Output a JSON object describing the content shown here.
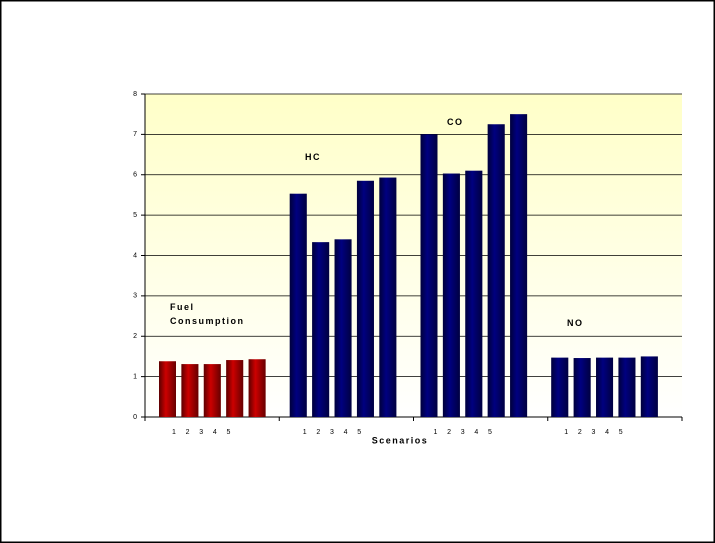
{
  "chart_data": {
    "type": "bar",
    "x_label": "Scenarios",
    "categories": [
      "1",
      "2",
      "3",
      "4",
      "5"
    ],
    "series": [
      {
        "name": "Fuel Consumption",
        "color": "#cc0000",
        "values": [
          1.38,
          1.31,
          1.31,
          1.41,
          1.43
        ]
      },
      {
        "name": "HC",
        "color": "#000080",
        "values": [
          5.53,
          4.33,
          4.4,
          5.85,
          5.93
        ]
      },
      {
        "name": "CO",
        "color": "#000080",
        "values": [
          7.0,
          6.03,
          6.1,
          7.25,
          7.5
        ]
      },
      {
        "name": "NO",
        "color": "#000080",
        "values": [
          1.47,
          1.46,
          1.47,
          1.47,
          1.5
        ]
      }
    ],
    "ylim": [
      0,
      8
    ],
    "yticks": [
      0,
      1,
      2,
      3,
      4,
      5,
      6,
      7,
      8
    ],
    "grid": true
  }
}
